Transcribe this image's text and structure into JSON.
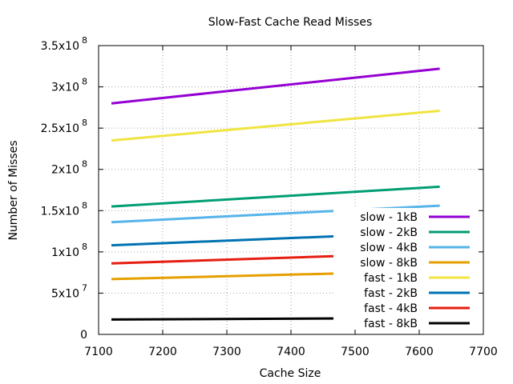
{
  "chart_data": {
    "type": "line",
    "title": "Slow-Fast Cache Read Misses",
    "xlabel": "Cache Size",
    "ylabel": "Number of Misses",
    "xlim": [
      7100,
      7700
    ],
    "ylim": [
      0,
      350000000
    ],
    "x_ticks": [
      {
        "value": 7100,
        "label": "7100"
      },
      {
        "value": 7200,
        "label": "7200"
      },
      {
        "value": 7300,
        "label": "7300"
      },
      {
        "value": 7400,
        "label": "7400"
      },
      {
        "value": 7500,
        "label": "7500"
      },
      {
        "value": 7600,
        "label": "7600"
      },
      {
        "value": 7700,
        "label": "7700"
      }
    ],
    "y_ticks": [
      {
        "value": 0,
        "base": "0",
        "exp": ""
      },
      {
        "value": 50000000,
        "base": "5x10",
        "exp": "7"
      },
      {
        "value": 100000000,
        "base": "1x10",
        "exp": "8"
      },
      {
        "value": 150000000,
        "base": "1.5x10",
        "exp": "8"
      },
      {
        "value": 200000000,
        "base": "2x10",
        "exp": "8"
      },
      {
        "value": 250000000,
        "base": "2.5x10",
        "exp": "8"
      },
      {
        "value": 300000000,
        "base": "3x10",
        "exp": "8"
      },
      {
        "value": 350000000,
        "base": "3.5x10",
        "exp": "8"
      }
    ],
    "grid": true,
    "legend_position": "bottom-right, inside",
    "series": [
      {
        "name": "slow - 1kB",
        "color": "#9400d3",
        "x": [
          7120,
          7632
        ],
        "y": [
          280000000,
          322000000
        ]
      },
      {
        "name": "slow - 2kB",
        "color": "#009e73",
        "x": [
          7120,
          7632
        ],
        "y": [
          155000000,
          179000000
        ]
      },
      {
        "name": "slow - 4kB",
        "color": "#56b4e9",
        "x": [
          7120,
          7632
        ],
        "y": [
          136000000,
          156000000
        ]
      },
      {
        "name": "slow - 8kB",
        "color": "#e69f00",
        "x": [
          7120,
          7632
        ],
        "y": [
          67000000,
          77000000
        ]
      },
      {
        "name": "fast - 1kB",
        "color": "#f0e442",
        "x": [
          7120,
          7632
        ],
        "y": [
          235000000,
          271000000
        ]
      },
      {
        "name": "fast - 2kB",
        "color": "#0072b2",
        "x": [
          7120,
          7632
        ],
        "y": [
          108000000,
          124000000
        ]
      },
      {
        "name": "fast - 4kB",
        "color": "#e51e10",
        "x": [
          7120,
          7632
        ],
        "y": [
          86000000,
          99000000
        ]
      },
      {
        "name": "fast - 8kB",
        "color": "#000000",
        "x": [
          7120,
          7632
        ],
        "y": [
          18000000,
          20000000
        ]
      }
    ]
  }
}
